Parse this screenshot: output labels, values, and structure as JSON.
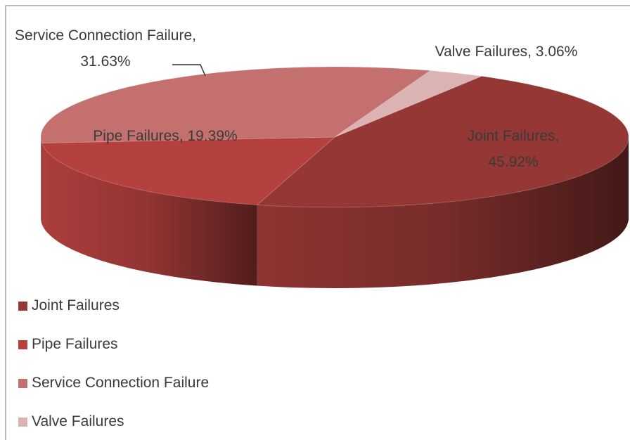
{
  "chart_data": {
    "type": "pie3d",
    "categories": [
      "Joint Failures",
      "Pipe Failures",
      "Service Connection Failure",
      "Valve Failures"
    ],
    "values": [
      45.92,
      19.39,
      31.63,
      3.06
    ],
    "value_labels": [
      "Joint Failures, 45.92%",
      "Pipe Failures, 19.39%",
      "Service Connection Failure, 31.63%",
      "Valve Failures, 3.06%"
    ],
    "colors": [
      "#953735",
      "#b5413f",
      "#c3706f",
      "#dcb3b3"
    ],
    "legend": "bottom-left"
  }
}
